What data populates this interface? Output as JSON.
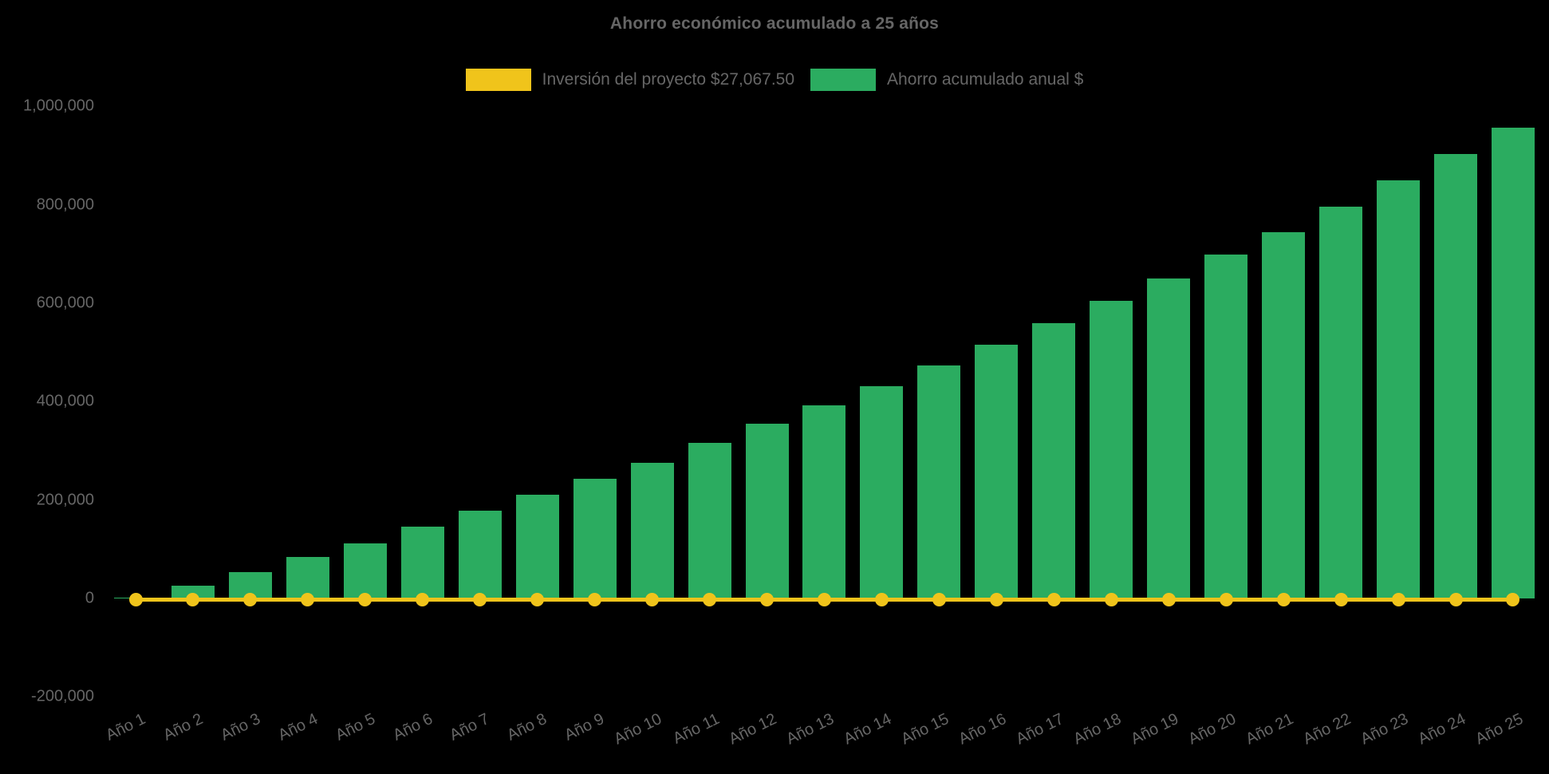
{
  "title": "Ahorro económico acumulado a 25 años",
  "colors": {
    "background": "#000000",
    "text": "#666666",
    "investment_yellow": "#F0C41B",
    "savings_green": "#2BAC60"
  },
  "legend": {
    "items": [
      {
        "label": "Inversión del proyecto $27,067.50",
        "color": "#F0C41B",
        "series": "investment"
      },
      {
        "label": "Ahorro acumulado anual $",
        "color": "#2BAC60",
        "series": "savings"
      }
    ]
  },
  "chart_data": {
    "type": "bar",
    "title": "Ahorro económico acumulado a 25 años",
    "categories": [
      "Año 1",
      "Año 2",
      "Año 3",
      "Año 4",
      "Año 5",
      "Año 6",
      "Año 7",
      "Año 8",
      "Año 9",
      "Año 10",
      "Año 11",
      "Año 12",
      "Año 13",
      "Año 14",
      "Año 15",
      "Año 16",
      "Año 17",
      "Año 18",
      "Año 19",
      "Año 20",
      "Año 21",
      "Año 22",
      "Año 23",
      "Año 24",
      "Año 25"
    ],
    "series": [
      {
        "name": "Inversión del proyecto $27,067.50",
        "type": "line",
        "color": "#F0C41B",
        "constant_value": 27067.5,
        "plotted_at_baseline": true
      },
      {
        "name": "Ahorro acumulado anual $",
        "type": "bar",
        "color": "#2BAC60",
        "values": [
          2000,
          26000,
          53500,
          84000,
          112500,
          146000,
          178000,
          211000,
          243000,
          276000,
          316000,
          355000,
          392000,
          431000,
          473000,
          515000,
          559000,
          605000,
          650000,
          699000,
          745000,
          797000,
          849000,
          903000,
          957000
        ]
      }
    ],
    "xlabel": "",
    "ylabel": "",
    "ylim": [
      -200000,
      1000000
    ],
    "ytick_values": [
      -200000,
      0,
      200000,
      400000,
      600000,
      800000,
      1000000
    ],
    "ytick_labels": [
      "-200,000",
      "0",
      "200,000",
      "400,000",
      "600,000",
      "800,000",
      "1,000,000"
    ],
    "grid": false,
    "legend_position": "top"
  }
}
